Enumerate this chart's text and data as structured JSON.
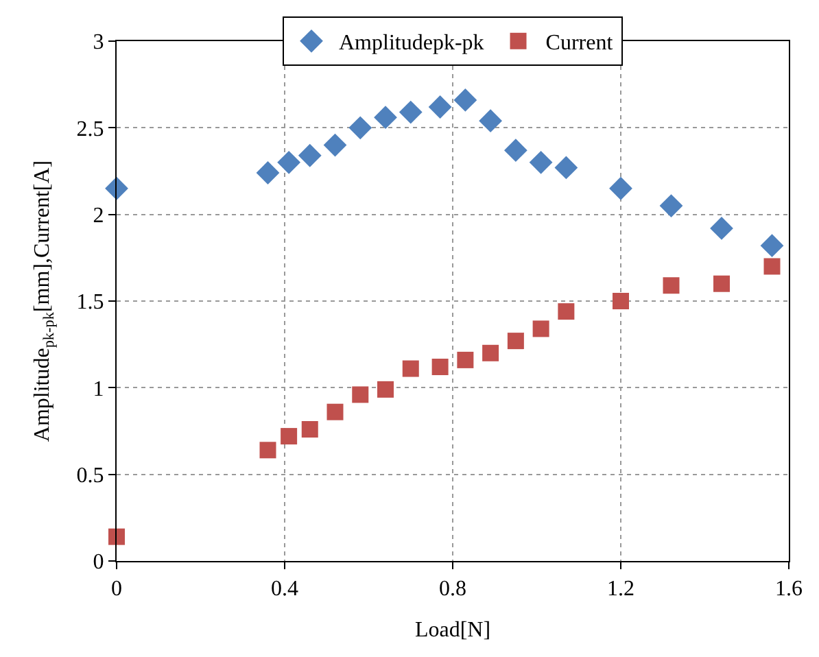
{
  "chart_data": {
    "type": "scatter",
    "xlabel": "Load[N]",
    "ylabel": "Amplitude$_{pk-pk}$[mm],Current[A]",
    "x": [
      0,
      0.36,
      0.41,
      0.46,
      0.52,
      0.58,
      0.64,
      0.7,
      0.77,
      0.83,
      0.89,
      0.95,
      1.01,
      1.07,
      1.2,
      1.32,
      1.44,
      1.56
    ],
    "series": [
      {
        "name": "Amplitudepk-pk",
        "color": "#4f81bd",
        "marker": "diamond",
        "values": [
          2.15,
          2.24,
          2.3,
          2.34,
          2.4,
          2.5,
          2.56,
          2.59,
          2.62,
          2.66,
          2.54,
          2.37,
          2.3,
          2.27,
          2.15,
          2.05,
          1.92,
          1.82
        ]
      },
      {
        "name": "Current",
        "color": "#c0504d",
        "marker": "square",
        "values": [
          0.14,
          0.64,
          0.72,
          0.76,
          0.86,
          0.96,
          0.99,
          1.11,
          1.12,
          1.16,
          1.2,
          1.27,
          1.34,
          1.44,
          1.5,
          1.59,
          1.6,
          1.7
        ]
      }
    ],
    "xlim": [
      0,
      1.6
    ],
    "xticks": [
      0,
      0.4,
      0.8,
      1.2,
      1.6
    ],
    "ylim": [
      0,
      3
    ],
    "yticks": [
      0,
      0.5,
      1,
      1.5,
      2,
      2.5,
      3
    ],
    "grid": true,
    "legend": "top"
  }
}
